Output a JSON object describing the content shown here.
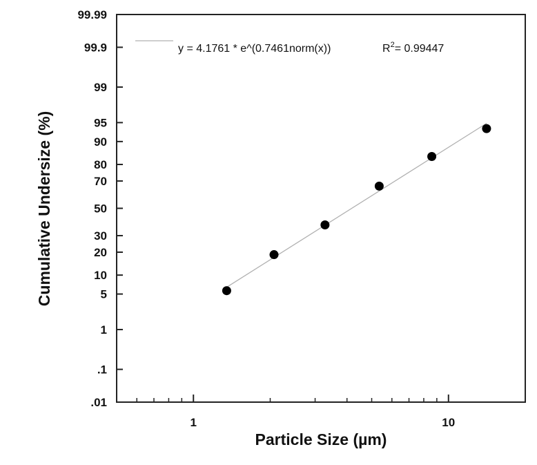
{
  "chart_data": {
    "type": "scatter",
    "title": "",
    "xlabel": "Particle Size (µm)",
    "ylabel": "Cumulative Undersize (%)",
    "x_scale": "log",
    "y_scale": "probability",
    "xlim": [
      0.5,
      20
    ],
    "ylim": [
      0.01,
      99.99
    ],
    "x_ticks": [
      {
        "v": 1,
        "label": "1"
      },
      {
        "v": 10,
        "label": "10"
      }
    ],
    "x_minor_ticks": [
      0.6,
      0.7,
      0.8,
      0.9,
      2,
      3,
      4,
      5,
      6,
      7,
      8,
      9
    ],
    "y_ticks": [
      {
        "v": 99.99,
        "label": "99.99"
      },
      {
        "v": 99.9,
        "label": "99.9"
      },
      {
        "v": 99,
        "label": "99"
      },
      {
        "v": 95,
        "label": "95"
      },
      {
        "v": 90,
        "label": "90"
      },
      {
        "v": 80,
        "label": "80"
      },
      {
        "v": 70,
        "label": "70"
      },
      {
        "v": 50,
        "label": "50"
      },
      {
        "v": 30,
        "label": "30"
      },
      {
        "v": 20,
        "label": "20"
      },
      {
        "v": 10,
        "label": "10"
      },
      {
        "v": 5,
        "label": "5"
      },
      {
        "v": 1,
        "label": "1"
      },
      {
        "v": 0.1,
        "label": ".1"
      },
      {
        "v": 0.01,
        "label": ".01"
      }
    ],
    "grid": false,
    "points": {
      "x": [
        1.35,
        2.07,
        3.28,
        5.35,
        8.6,
        14.1
      ],
      "y": [
        5.7,
        18.7,
        37.5,
        66.5,
        84.0,
        93.7
      ],
      "color": "#000000"
    },
    "fit": {
      "a": 4.1761,
      "b": 0.7461,
      "x_range": [
        1.35,
        14.1
      ],
      "color": "#b0b0b0",
      "equation_label": "y = 4.1761 * e^(0.7461norm(x))",
      "r2_prefix": "R",
      "r2_sup": "2",
      "r2_value": "= 0.99447"
    },
    "legend_placement": "top-left"
  }
}
